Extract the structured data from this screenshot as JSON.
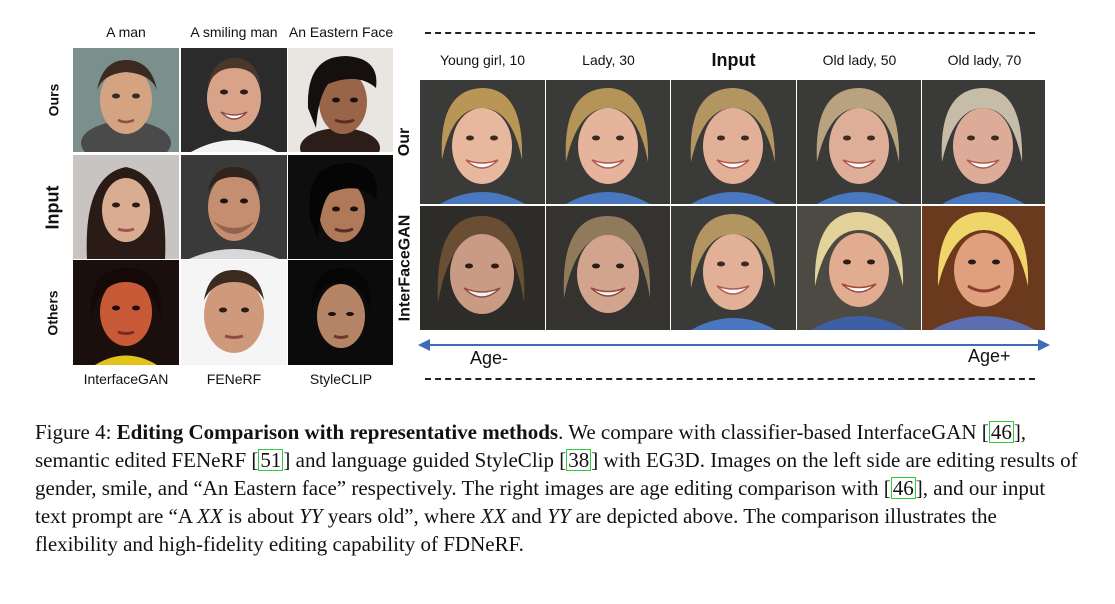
{
  "left_panel": {
    "column_labels": [
      "A man",
      "A smiling man",
      "An Eastern Face"
    ],
    "row_labels": [
      "Ours",
      "Input",
      "Others"
    ],
    "method_labels": [
      "InterfaceGAN",
      "FENeRF",
      "StyleCLIP"
    ]
  },
  "right_panel": {
    "age_labels": [
      "Young girl, 10",
      "Lady, 30",
      "Input",
      "Old lady, 50",
      "Old lady, 70"
    ],
    "row_labels": [
      "Our",
      "InterFaceGAN"
    ],
    "age_minus": "Age-",
    "age_plus": "Age+"
  },
  "caption": {
    "figure_label": "Figure 4:",
    "title": "Editing Comparison with representative methods",
    "t1": ". We compare with classifier-based InterfaceGAN [",
    "c1": "46",
    "t2": "], semantic edited FENeRF [",
    "c2": "51",
    "t3": "] and language guided StyleClip [",
    "c3": "38",
    "t4": "] with EG3D. Images on the left side are editing results of gender, smile, and “An Eastern face” respectively. The right images are age editing comparison with  [",
    "c4": "46",
    "t5": "], and our input text prompt are “A ",
    "xx": "XX",
    "t6": " is about ",
    "yy": "YY",
    "t7": " years old”, where ",
    "xx2": "XX",
    "t8": " and ",
    "yy2": "YY",
    "t9": " are depicted above. The comparison illustrates the flexibility and high-fidelity editing capability of FDNeRF."
  },
  "colors": {
    "arrow": "#3e6bb5",
    "cite_box": "#2ecc40"
  }
}
